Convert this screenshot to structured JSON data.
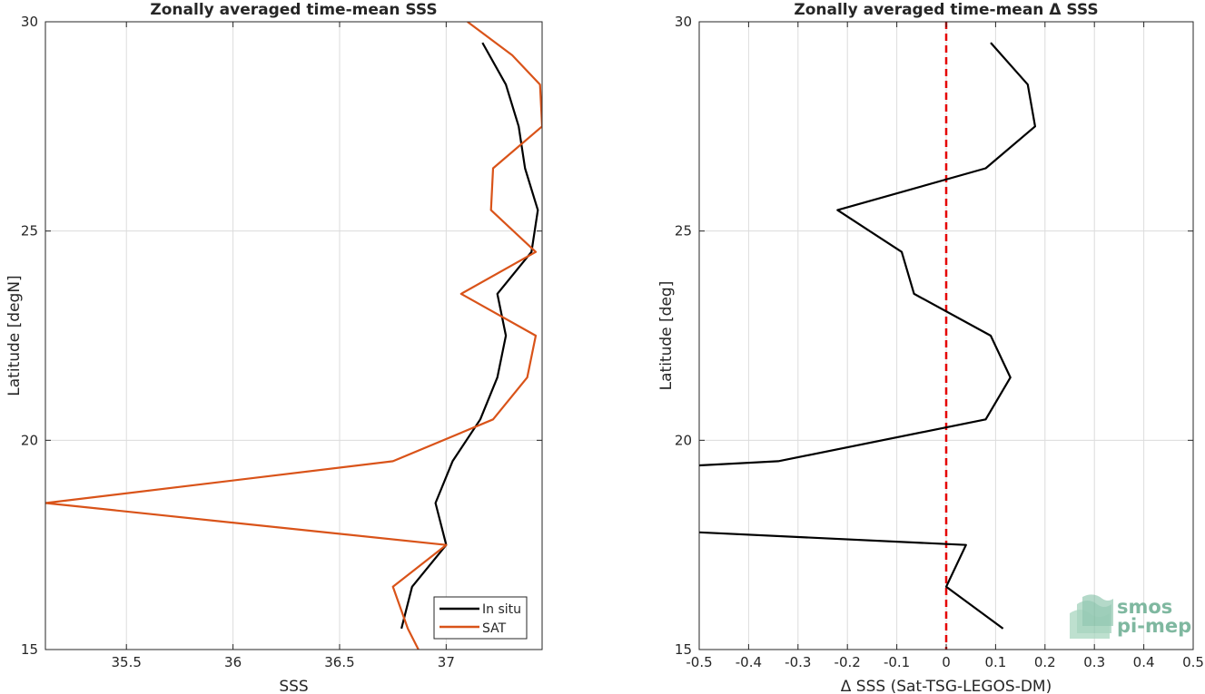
{
  "chart_data": [
    {
      "type": "line",
      "title": "Zonally averaged time-mean SSS",
      "xlabel": "SSS",
      "ylabel": "Latitude [degN]",
      "xlim": [
        35.12,
        37.45
      ],
      "ylim": [
        15,
        30
      ],
      "xticks": [
        35.5,
        36,
        36.5,
        37
      ],
      "yticks": [
        15,
        20,
        25,
        30
      ],
      "grid": true,
      "legend": "bottom-right",
      "series": [
        {
          "name": "In situ",
          "color": "#000000",
          "points": [
            {
              "x": 37.17,
              "y": 29.5
            },
            {
              "x": 37.28,
              "y": 28.5
            },
            {
              "x": 37.34,
              "y": 27.5
            },
            {
              "x": 37.37,
              "y": 26.5
            },
            {
              "x": 37.43,
              "y": 25.5
            },
            {
              "x": 37.4,
              "y": 24.5
            },
            {
              "x": 37.24,
              "y": 23.5
            },
            {
              "x": 37.28,
              "y": 22.5
            },
            {
              "x": 37.24,
              "y": 21.5
            },
            {
              "x": 37.16,
              "y": 20.5
            },
            {
              "x": 37.03,
              "y": 19.5
            },
            {
              "x": 36.95,
              "y": 18.5
            },
            {
              "x": 37.0,
              "y": 17.5
            },
            {
              "x": 36.84,
              "y": 16.5
            },
            {
              "x": 36.79,
              "y": 15.5
            }
          ]
        },
        {
          "name": "SAT",
          "color": "#d95319",
          "points": [
            {
              "x": 37.1,
              "y": 30.0
            },
            {
              "x": 37.31,
              "y": 29.2
            },
            {
              "x": 37.44,
              "y": 28.5
            },
            {
              "x": 37.45,
              "y": 27.5
            },
            {
              "x": 37.22,
              "y": 26.5
            },
            {
              "x": 37.21,
              "y": 25.5
            },
            {
              "x": 37.42,
              "y": 24.5
            },
            {
              "x": 37.07,
              "y": 23.5
            },
            {
              "x": 37.42,
              "y": 22.5
            },
            {
              "x": 37.38,
              "y": 21.5
            },
            {
              "x": 37.22,
              "y": 20.5
            },
            {
              "x": 36.75,
              "y": 19.5
            },
            {
              "x": 35.12,
              "y": 18.5
            },
            {
              "x": 37.0,
              "y": 17.5
            },
            {
              "x": 36.75,
              "y": 16.5
            },
            {
              "x": 36.82,
              "y": 15.5
            },
            {
              "x": 36.87,
              "y": 15.0
            }
          ]
        }
      ]
    },
    {
      "type": "line",
      "title": "Zonally averaged time-mean Δ SSS",
      "xlabel": "Δ SSS (Sat-TSG-LEGOS-DM)",
      "ylabel": "Latitude [deg]",
      "xlim": [
        -0.5,
        0.5
      ],
      "ylim": [
        15,
        30
      ],
      "xticks": [
        -0.5,
        -0.4,
        -0.3,
        -0.2,
        -0.1,
        0,
        0.1,
        0.2,
        0.3,
        0.4,
        0.5
      ],
      "yticks": [
        15,
        20,
        25,
        30
      ],
      "grid": true,
      "reference_line": {
        "x": 0,
        "color": "#e50000",
        "style": "dashed"
      },
      "series": [
        {
          "color": "#000000",
          "segments": [
            [
              {
                "x": 0.09,
                "y": 29.5
              },
              {
                "x": 0.165,
                "y": 28.5
              },
              {
                "x": 0.18,
                "y": 27.5
              },
              {
                "x": 0.08,
                "y": 26.5
              },
              {
                "x": -0.22,
                "y": 25.5
              },
              {
                "x": -0.09,
                "y": 24.5
              },
              {
                "x": -0.065,
                "y": 23.5
              },
              {
                "x": 0.09,
                "y": 22.5
              },
              {
                "x": 0.13,
                "y": 21.5
              },
              {
                "x": 0.08,
                "y": 20.5
              },
              {
                "x": -0.34,
                "y": 19.5
              },
              {
                "x": -0.5,
                "y": 19.4
              }
            ],
            [
              {
                "x": -0.5,
                "y": 17.8
              },
              {
                "x": 0.04,
                "y": 17.5
              },
              {
                "x": 0.0,
                "y": 16.5
              },
              {
                "x": 0.115,
                "y": 15.5
              }
            ]
          ]
        }
      ]
    }
  ],
  "legend": [
    {
      "label": "In situ",
      "color": "#000000"
    },
    {
      "label": "SAT",
      "color": "#d95319"
    }
  ],
  "logo": {
    "line1": "smos",
    "line2": "pi-mep"
  }
}
